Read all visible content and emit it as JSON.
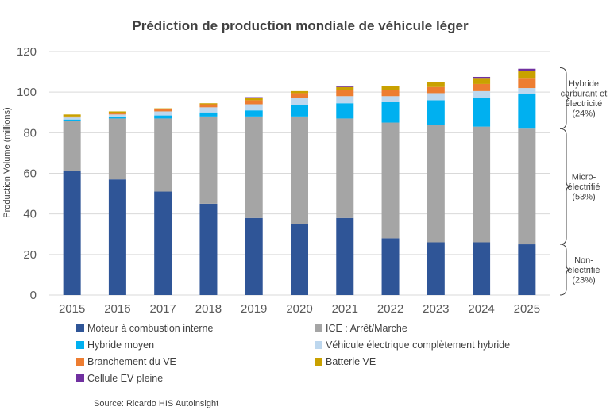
{
  "chart_data": {
    "type": "bar",
    "stacked": true,
    "title": "Prédiction de production mondiale de véhicule léger",
    "xlabel": "",
    "ylabel": "Production Volume (millions)",
    "ylim": [
      0,
      120
    ],
    "yticks": [
      0,
      20,
      40,
      60,
      80,
      100,
      120
    ],
    "grid": true,
    "legend_position": "bottom",
    "categories": [
      "2015",
      "2016",
      "2017",
      "2018",
      "2019",
      "2020",
      "2021",
      "2022",
      "2023",
      "2024",
      "2025"
    ],
    "series": [
      {
        "name": "Moteur à combustion interne",
        "color": "#2f5597",
        "values": [
          61,
          57,
          51,
          45,
          38,
          35,
          38,
          28,
          26,
          26,
          25
        ]
      },
      {
        "name": "ICE : Arrêt/Marche",
        "color": "#a5a5a5",
        "values": [
          25,
          30,
          36,
          43,
          50,
          53,
          49,
          57,
          58,
          57,
          57
        ]
      },
      {
        "name": "Hybride moyen",
        "color": "#00b0f0",
        "values": [
          0.5,
          1,
          1.5,
          2,
          3,
          5.5,
          7.5,
          10,
          12,
          14,
          17
        ]
      },
      {
        "name": "Véhicule électrique complètement hybride",
        "color": "#bdd7ee",
        "values": [
          1,
          1,
          2,
          2.5,
          3,
          3.5,
          3.5,
          3,
          3.5,
          3.5,
          3
        ]
      },
      {
        "name": "Branchement du VE",
        "color": "#ed7d31",
        "values": [
          0.5,
          0.5,
          1,
          1.5,
          2,
          2.5,
          3,
          3,
          3,
          3.5,
          5
        ]
      },
      {
        "name": "Batterie VE",
        "color": "#c9a100",
        "values": [
          1,
          1,
          0.5,
          0.5,
          1,
          1,
          1.5,
          2,
          2.5,
          3,
          3.5
        ]
      },
      {
        "name": "Cellule EV pleine",
        "color": "#7030a0",
        "values": [
          0,
          0,
          0,
          0,
          0.5,
          0,
          0.5,
          0,
          0,
          0.5,
          1
        ]
      }
    ],
    "annotations": [
      {
        "lines": [
          "Hybride",
          "carburant et",
          "électricité",
          "(24%)"
        ],
        "range": [
          82,
          112
        ]
      },
      {
        "lines": [
          "Micro-",
          "électrifié",
          "(53%)"
        ],
        "range": [
          25,
          82
        ]
      },
      {
        "lines": [
          "Non-",
          "électrifié",
          "(23%)"
        ],
        "range": [
          0,
          25
        ]
      }
    ],
    "source": "Source: Ricardo HIS Autoinsight"
  }
}
